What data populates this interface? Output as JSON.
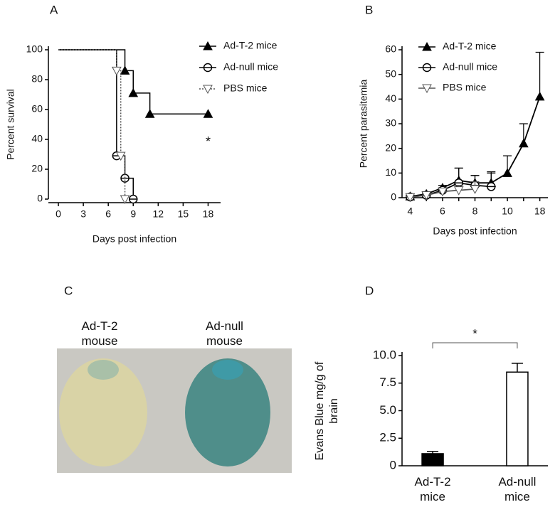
{
  "chart_data": [
    {
      "type": "step",
      "panel_label": "A",
      "xlabel": "Days post infection",
      "ylabel": "Percent survival",
      "xlim": [
        -1.2,
        19.5
      ],
      "xticks": [
        0,
        3,
        6,
        9,
        12,
        15,
        18
      ],
      "ylim": [
        0,
        100
      ],
      "yticks": [
        0,
        20,
        40,
        60,
        80,
        100
      ],
      "series": [
        {
          "name": "Ad-T-2 mice",
          "color": "#000000",
          "marker": "triangle-up",
          "dash": false,
          "x": [
            0,
            8,
            9,
            11,
            18
          ],
          "values": [
            100,
            86,
            71,
            57,
            57
          ]
        },
        {
          "name": "Ad-null  mice",
          "color": "#000000",
          "marker": "circle",
          "dash": false,
          "x": [
            0,
            7,
            8,
            9
          ],
          "values": [
            100,
            29,
            14,
            0
          ]
        },
        {
          "name": "PBS mice",
          "color": "#555555",
          "marker": "triangle-down",
          "dash": true,
          "x": [
            0,
            7,
            7.5,
            8
          ],
          "values": [
            100,
            86,
            29,
            0
          ]
        }
      ],
      "annotation": {
        "text": "*",
        "x": 18,
        "y": 38
      }
    },
    {
      "type": "line",
      "panel_label": "B",
      "xlabel": "Days post infection",
      "ylabel": "Percent parasitemia",
      "categories": [
        "4",
        null,
        "6",
        null,
        "8",
        null,
        "10",
        null,
        "18"
      ],
      "ylim": [
        0,
        60
      ],
      "yticks": [
        0,
        10,
        20,
        30,
        40,
        50,
        60
      ],
      "series": [
        {
          "name": "Ad-T-2 mice",
          "color": "#000000",
          "marker": "triangle-up",
          "values": [
            0.5,
            1.5,
            4,
            7,
            6,
            6,
            10,
            22,
            41
          ],
          "errors": [
            0.5,
            0.5,
            1,
            5,
            3,
            4,
            7,
            8,
            18
          ]
        },
        {
          "name": "Ad-null mice",
          "color": "#000000",
          "marker": "circle",
          "values": [
            0.3,
            1,
            3,
            6,
            5,
            4.5,
            null,
            null,
            null
          ],
          "errors": [
            0.3,
            0.5,
            1,
            6,
            4,
            6,
            null,
            null,
            null
          ]
        },
        {
          "name": "PBS mice",
          "color": "#555555",
          "marker": "triangle-down",
          "values": [
            0.2,
            1,
            2.5,
            3,
            3.5,
            null,
            null,
            null,
            null
          ],
          "errors": [
            0.2,
            0.5,
            1,
            2,
            3,
            null,
            null,
            null,
            null
          ]
        }
      ]
    },
    {
      "type": "bar",
      "panel_label": "D",
      "ylabel": "Evans Blue mg/g of brain",
      "categories": [
        "Ad-T-2 mice",
        "Ad-null mice"
      ],
      "values": [
        1.1,
        8.5
      ],
      "errors": [
        0.2,
        0.8
      ],
      "colors": [
        "#000000",
        "#ffffff"
      ],
      "ylim": [
        0,
        10
      ],
      "yticks": [
        0,
        2.5,
        {
          "value": 5,
          "label": "5.0"
        },
        7.5,
        {
          "value": 10,
          "label": "10.0"
        }
      ],
      "significance": "*"
    }
  ],
  "photo": {
    "panel_label": "C",
    "captions": [
      "Ad-T-2 mouse",
      "Ad-null mouse"
    ]
  }
}
